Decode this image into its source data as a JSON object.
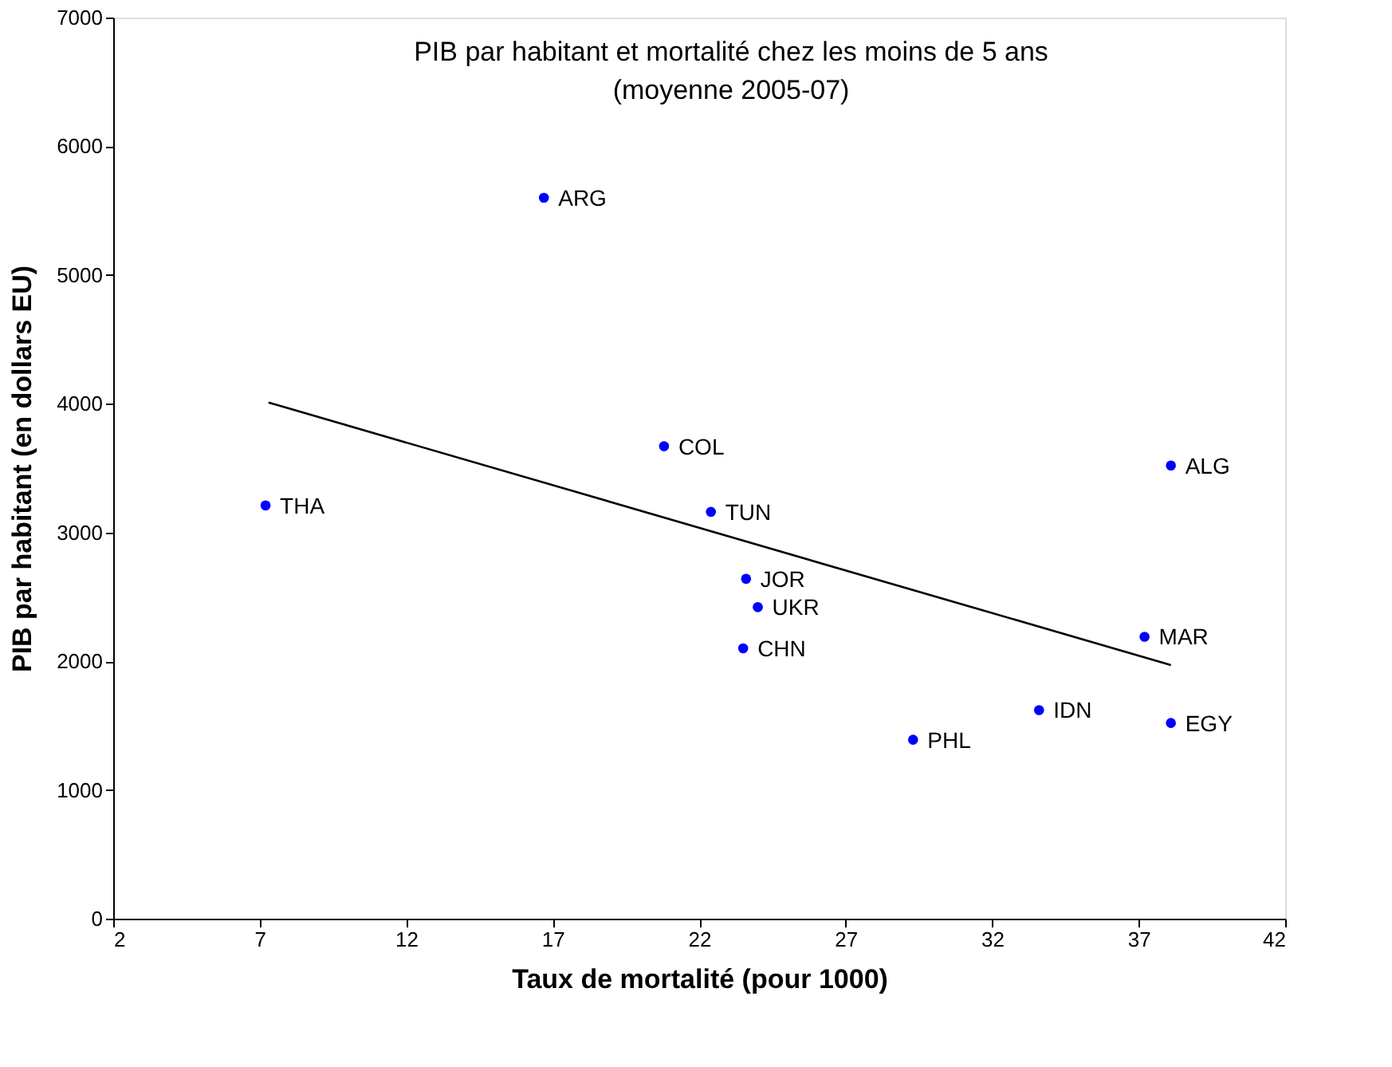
{
  "chart_data": {
    "type": "scatter",
    "title": "PIB par habitant et mortalité chez les moins de 5 ans",
    "subtitle": "(moyenne 2005-07)",
    "xlabel": "Taux de mortalité (pour 1000)",
    "ylabel": "PIB par habitant  (en dollars EU)",
    "xlim": [
      2,
      42
    ],
    "xticks": [
      2,
      7,
      12,
      17,
      22,
      27,
      32,
      37,
      42
    ],
    "ylim": [
      0,
      7000
    ],
    "yticks": [
      0,
      1000,
      2000,
      3000,
      4000,
      5000,
      6000,
      7000
    ],
    "grid": false,
    "series": [
      {
        "marker": "circle",
        "color": "#0000ff",
        "x": [
          16.7,
          20.8,
          7.2,
          22.4,
          23.6,
          24.0,
          23.5,
          29.3,
          33.6,
          38.1,
          38.1,
          37.2
        ],
        "values": [
          5600,
          3670,
          3210,
          3160,
          2640,
          2420,
          2100,
          1390,
          1620,
          1520,
          3520,
          2190
        ]
      },
      {
        "type": "line",
        "marker": "none",
        "color": "#000000",
        "x": [
          7.3,
          38.1
        ],
        "values": [
          4010,
          1970
        ]
      }
    ],
    "annotations": [
      {
        "text": "ARG",
        "x": 16.7,
        "y": 5600
      },
      {
        "text": "COL",
        "x": 20.8,
        "y": 3670
      },
      {
        "text": "THA",
        "x": 7.2,
        "y": 3210
      },
      {
        "text": "TUN",
        "x": 22.4,
        "y": 3160
      },
      {
        "text": "JOR",
        "x": 23.6,
        "y": 2640
      },
      {
        "text": "UKR",
        "x": 24.0,
        "y": 2420
      },
      {
        "text": "CHN",
        "x": 23.5,
        "y": 2100
      },
      {
        "text": "PHL",
        "x": 29.3,
        "y": 1390
      },
      {
        "text": "IDN",
        "x": 33.6,
        "y": 1620
      },
      {
        "text": "EGY",
        "x": 38.1,
        "y": 1520
      },
      {
        "text": "ALG",
        "x": 38.1,
        "y": 3520
      },
      {
        "text": "MAR",
        "x": 37.2,
        "y": 2190
      }
    ]
  }
}
